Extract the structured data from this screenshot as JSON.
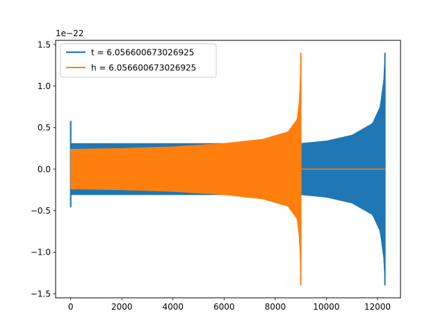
{
  "chart_data": {
    "type": "line",
    "title": "",
    "xlabel": "",
    "ylabel": "",
    "offset_text": "1e−22",
    "xlim": [
      -590,
      12900
    ],
    "ylim": [
      -1.55,
      1.55
    ],
    "x_ticks": [
      0,
      2000,
      4000,
      6000,
      8000,
      10000,
      12000
    ],
    "x_tick_labels": [
      "0",
      "2000",
      "4000",
      "6000",
      "8000",
      "10000",
      "12000"
    ],
    "y_ticks": [
      -1.5,
      -1.0,
      -0.5,
      0.0,
      0.5,
      1.0,
      1.5
    ],
    "y_tick_labels": [
      "−1.5",
      "−1.0",
      "−0.5",
      "0.0",
      "0.5",
      "1.0",
      "1.5"
    ],
    "grid": false,
    "legend_position": "upper-left",
    "series": [
      {
        "name": "t = 6.056600673026925",
        "color": "#1f77b4",
        "x_start": 0,
        "x_end": 12290,
        "start_spike": {
          "max": 0.58,
          "min": -0.46
        },
        "envelope": [
          {
            "x": 0,
            "amp": 0.31
          },
          {
            "x": 9000,
            "amp": 0.31
          },
          {
            "x": 10000,
            "amp": 0.34
          },
          {
            "x": 11000,
            "amp": 0.41
          },
          {
            "x": 11800,
            "amp": 0.55
          },
          {
            "x": 12100,
            "amp": 0.75
          },
          {
            "x": 12250,
            "amp": 1.1
          },
          {
            "x": 12290,
            "amp": 1.4
          }
        ]
      },
      {
        "name": "h = 6.056600673026925",
        "color": "#ff7f0e",
        "x_start": 0,
        "x_end": 12290,
        "signal_end": 9000,
        "envelope": [
          {
            "x": 0,
            "amp": 0.24
          },
          {
            "x": 2000,
            "amp": 0.25
          },
          {
            "x": 4000,
            "amp": 0.27
          },
          {
            "x": 6000,
            "amp": 0.31
          },
          {
            "x": 7500,
            "amp": 0.36
          },
          {
            "x": 8500,
            "amp": 0.45
          },
          {
            "x": 8850,
            "amp": 0.6
          },
          {
            "x": 8950,
            "amp": 0.85
          },
          {
            "x": 9000,
            "amp": 1.4
          }
        ]
      }
    ]
  }
}
